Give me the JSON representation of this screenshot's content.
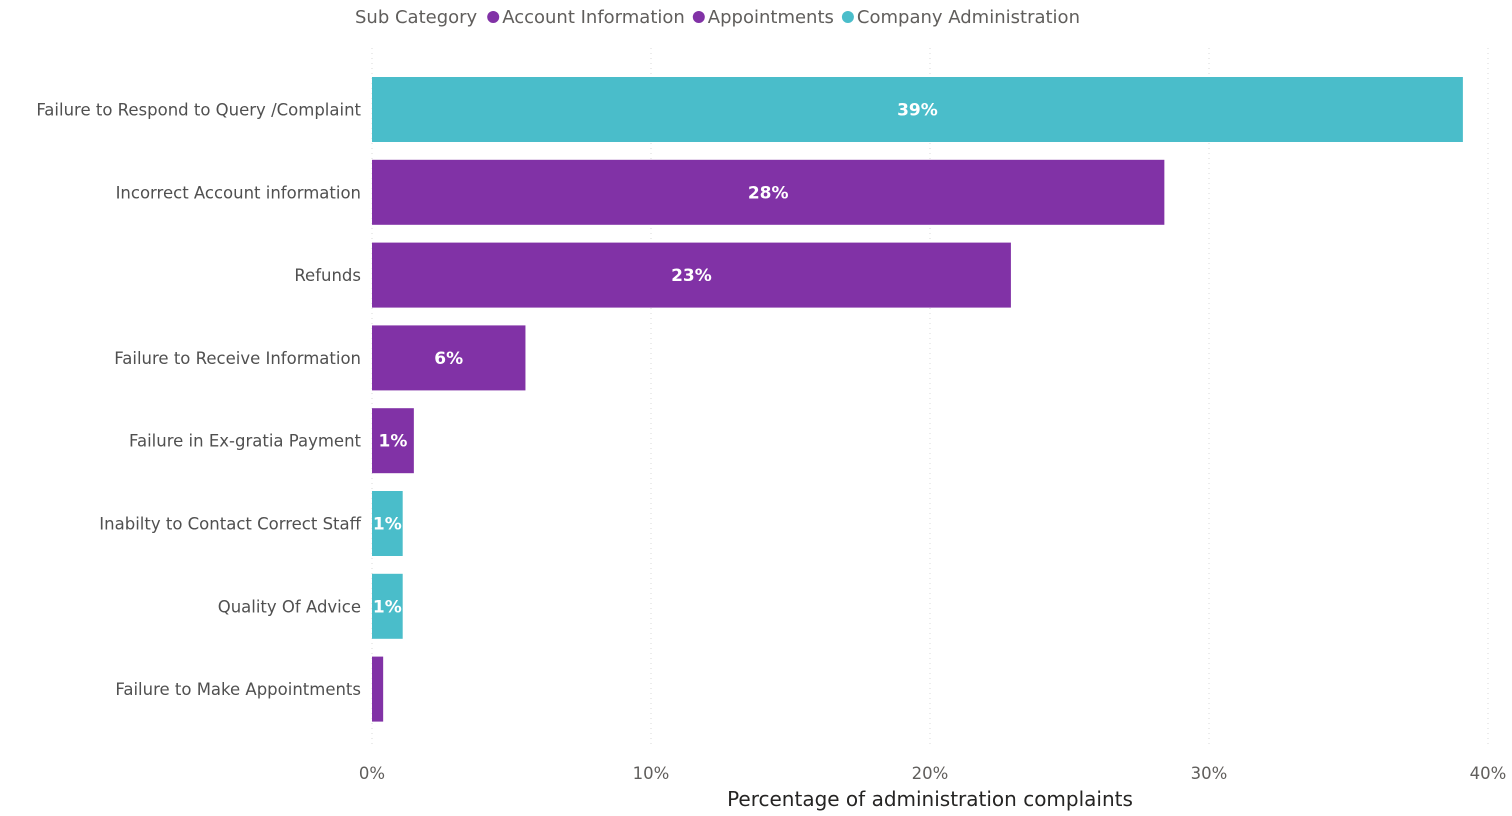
{
  "chart_data": {
    "type": "bar",
    "orientation": "horizontal",
    "xlabel": "Percentage of administration complaints",
    "ylabel": "",
    "xlim": [
      0,
      40
    ],
    "x_ticks": [
      "0%",
      "10%",
      "20%",
      "30%",
      "40%"
    ],
    "grid": true,
    "legend": {
      "title": "Sub Category",
      "position": "top",
      "entries": [
        {
          "name": "Account Information",
          "color": "#8132a6"
        },
        {
          "name": "Appointments",
          "color": "#8132a6"
        },
        {
          "name": "Company Administration",
          "color": "#4abdca"
        }
      ]
    },
    "categories": [
      "Failure to Respond to Query /Complaint",
      "Incorrect Account information",
      "Refunds",
      "Failure to Receive Information",
      "Failure in Ex-gratia Payment",
      "Inabilty to Contact Correct Staff",
      "Quality Of Advice",
      "Failure to Make Appointments"
    ],
    "values": [
      39.1,
      28.4,
      22.9,
      5.5,
      1.5,
      1.1,
      1.1,
      0.4
    ],
    "data_labels": [
      "39%",
      "28%",
      "23%",
      "6%",
      "1%",
      "1%",
      "1%",
      ""
    ],
    "bar_colors": [
      "#4abdca",
      "#8132a6",
      "#8132a6",
      "#8132a6",
      "#8132a6",
      "#4abdca",
      "#4abdca",
      "#8132a6"
    ]
  }
}
